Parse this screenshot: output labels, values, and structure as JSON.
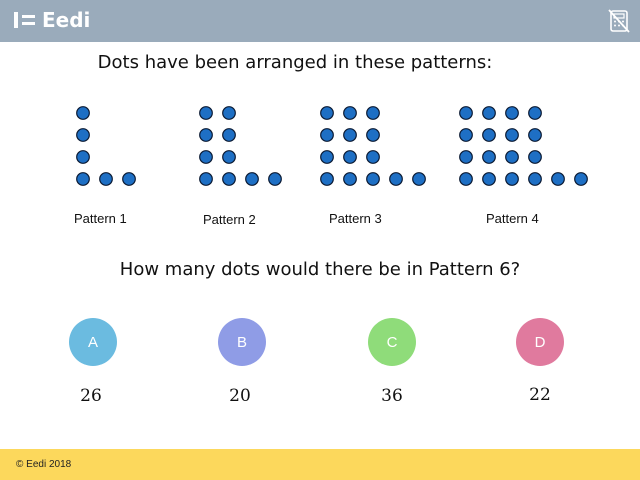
{
  "header": {
    "brand": "Eedi",
    "background": "#9aabbb",
    "logo_icon": "eedi-logo-icon",
    "calculator_icon": "no-calculator-icon"
  },
  "question": {
    "title": "Dots have been arranged in these patterns:",
    "prompt": "How many dots would there be in Pattern 6?"
  },
  "patterns": [
    {
      "label": "Pattern 1",
      "n": 1
    },
    {
      "label": "Pattern 2",
      "n": 2
    },
    {
      "label": "Pattern 3",
      "n": 3
    },
    {
      "label": "Pattern 4",
      "n": 4
    }
  ],
  "dot_color": "#1e6fc4",
  "options": [
    {
      "letter": "A",
      "answer": "26",
      "color": "#6bbbe0"
    },
    {
      "letter": "B",
      "answer": "20",
      "color": "#8f9ce6"
    },
    {
      "letter": "C",
      "answer": "36",
      "color": "#8fdc7a"
    },
    {
      "letter": "D",
      "answer": "22",
      "color": "#e07a9e"
    }
  ],
  "footer": {
    "copyright": "© Eedi 2018",
    "background": "#fcd85c"
  }
}
